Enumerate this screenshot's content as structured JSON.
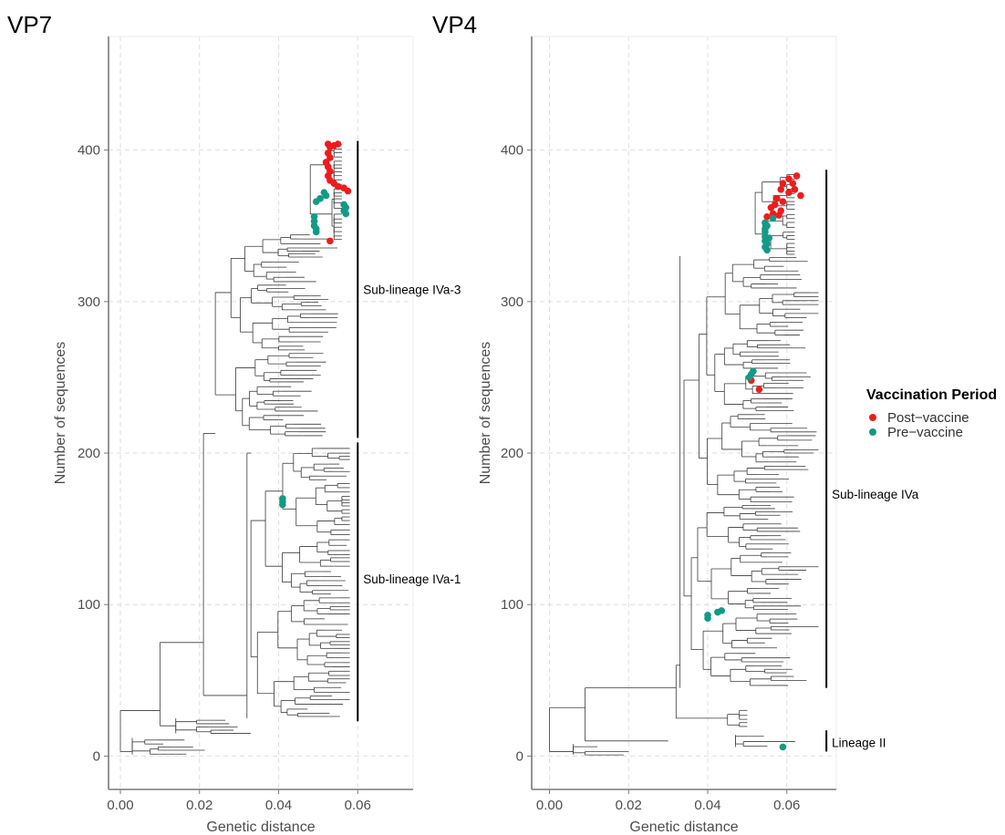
{
  "legend": {
    "title": "Vaccination Period",
    "entries": [
      {
        "label": "Post−vaccine",
        "color": "#ee1c1c"
      },
      {
        "label": "Pre−vaccine",
        "color": "#139a85"
      }
    ]
  },
  "chart_data": [
    {
      "type": "scatter",
      "chart_kind": "phylogenetic tree",
      "title": "VP7",
      "xlabel": "Genetic distance",
      "ylabel": "Number of sequences",
      "xlim": [
        -0.003,
        0.074
      ],
      "ylim": [
        -22,
        475
      ],
      "xticks": [
        0.0,
        0.02,
        0.04,
        0.06
      ],
      "xtick_labels": [
        "0.00",
        "0.02",
        "0.04",
        "0.06"
      ],
      "yticks": [
        0,
        100,
        200,
        300,
        400
      ],
      "ytick_labels": [
        "0",
        "100",
        "200",
        "300",
        "400"
      ],
      "grid": true,
      "clades": [
        {
          "label": "Sub-lineage IVa-3",
          "x": 0.06,
          "y_from": 210,
          "y_to": 406,
          "label_y": 308
        },
        {
          "label": "Sub-lineage IVa-1",
          "x": 0.06,
          "y_from": 23,
          "y_to": 207,
          "label_y": 117
        }
      ],
      "series": [
        {
          "name": "Post−vaccine",
          "points": [
            [
              0.0525,
              404
            ],
            [
              0.053,
              402
            ],
            [
              0.054,
              403
            ],
            [
              0.055,
              404
            ],
            [
              0.0525,
              398
            ],
            [
              0.053,
              395
            ],
            [
              0.052,
              392
            ],
            [
              0.0525,
              389
            ],
            [
              0.053,
              386
            ],
            [
              0.0525,
              383
            ],
            [
              0.053,
              380
            ],
            [
              0.054,
              378
            ],
            [
              0.055,
              376
            ],
            [
              0.0565,
              375
            ],
            [
              0.0575,
              373
            ],
            [
              0.053,
              340
            ]
          ]
        },
        {
          "name": "Pre−vaccine",
          "points": [
            [
              0.0515,
              372
            ],
            [
              0.052,
              370
            ],
            [
              0.0505,
              368
            ],
            [
              0.0495,
              366
            ],
            [
              0.0565,
              364
            ],
            [
              0.057,
              362
            ],
            [
              0.0565,
              360
            ],
            [
              0.057,
              358
            ],
            [
              0.049,
              356
            ],
            [
              0.049,
              353
            ],
            [
              0.049,
              350
            ],
            [
              0.0495,
              348
            ],
            [
              0.0495,
              346
            ],
            [
              0.041,
              170
            ],
            [
              0.041,
              168
            ],
            [
              0.041,
              166
            ]
          ]
        }
      ],
      "tree": {
        "root": [
          0.0,
          30
        ],
        "branch_count": 210,
        "tip_y_range": [
          0,
          405
        ]
      }
    },
    {
      "type": "scatter",
      "chart_kind": "phylogenetic tree",
      "title": "VP4",
      "xlabel": "Genetic distance",
      "ylabel": "Number of sequences",
      "xlim": [
        -0.0045,
        0.0725
      ],
      "ylim": [
        -22,
        475
      ],
      "xticks": [
        0.0,
        0.02,
        0.04,
        0.06
      ],
      "xtick_labels": [
        "0.00",
        "0.02",
        "0.04",
        "0.06"
      ],
      "yticks": [
        0,
        100,
        200,
        300,
        400
      ],
      "ytick_labels": [
        "0",
        "100",
        "200",
        "300",
        "400"
      ],
      "grid": true,
      "clades": [
        {
          "label": "Sub-lineage IVa",
          "x": 0.07,
          "y_from": 45,
          "y_to": 387,
          "label_y": 173
        },
        {
          "label": "Lineage II",
          "x": 0.07,
          "y_from": 3,
          "y_to": 17,
          "label_y": 9
        }
      ],
      "series": [
        {
          "name": "Post−vaccine",
          "points": [
            [
              0.0605,
              381
            ],
            [
              0.0625,
              383
            ],
            [
              0.059,
              378
            ],
            [
              0.0615,
              378
            ],
            [
              0.0585,
              374
            ],
            [
              0.0605,
              372
            ],
            [
              0.062,
              374
            ],
            [
              0.0635,
              370
            ],
            [
              0.0575,
              368
            ],
            [
              0.059,
              366
            ],
            [
              0.057,
              364
            ],
            [
              0.056,
              362
            ],
            [
              0.0585,
              360
            ],
            [
              0.0565,
              358
            ],
            [
              0.055,
              356
            ],
            [
              0.058,
              357
            ],
            [
              0.051,
              248
            ],
            [
              0.053,
              242
            ]
          ]
        },
        {
          "name": "Pre−vaccine",
          "points": [
            [
              0.0545,
              352
            ],
            [
              0.055,
              350
            ],
            [
              0.0545,
              348
            ],
            [
              0.0545,
              346
            ],
            [
              0.0545,
              343
            ],
            [
              0.0555,
              342
            ],
            [
              0.0545,
              340
            ],
            [
              0.055,
              338
            ],
            [
              0.0545,
              336
            ],
            [
              0.055,
              334
            ],
            [
              0.0565,
              355
            ],
            [
              0.0505,
              250
            ],
            [
              0.051,
              252
            ],
            [
              0.0515,
              254
            ],
            [
              0.04,
              93
            ],
            [
              0.04,
              91
            ],
            [
              0.0425,
              95
            ],
            [
              0.0435,
              96
            ],
            [
              0.059,
              6
            ]
          ]
        }
      ],
      "tree": {
        "root": [
          0.0,
          32
        ],
        "branch_count": 210,
        "tip_y_range": [
          0,
          385
        ]
      }
    }
  ]
}
